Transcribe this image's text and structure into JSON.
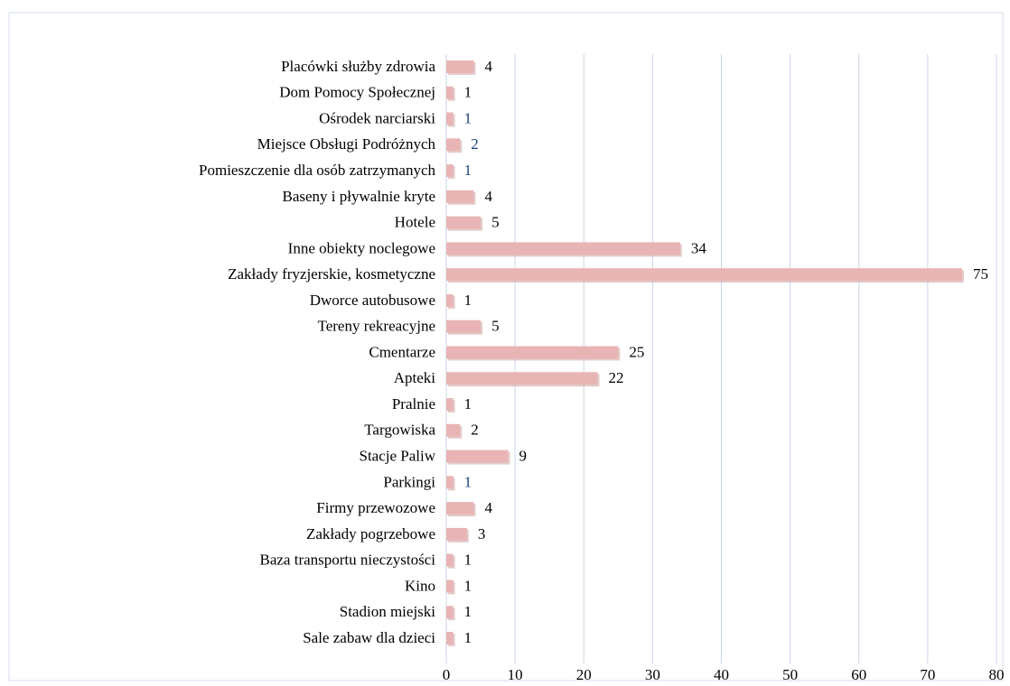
{
  "chart_data": {
    "type": "barh",
    "categories": [
      "Placówki służby zdrowia",
      "Dom Pomocy Społecznej",
      "Ośrodek narciarski",
      "Miejsce Obsługi Podróżnych",
      "Pomieszczenie dla osób zatrzymanych",
      "Baseny i pływalnie kryte",
      "Hotele",
      "Inne obiekty noclegowe",
      "Zakłady fryzjerskie, kosmetyczne",
      "Dworce autobusowe",
      "Tereny rekreacyjne",
      "Cmentarze",
      "Apteki",
      "Pralnie",
      "Targowiska",
      "Stacje Paliw",
      "Parkingi",
      "Firmy przewozowe",
      "Zakłady pogrzebowe",
      "Baza transportu nieczystości",
      "Kino",
      "Stadion miejski",
      "Sale zabaw dla dzieci"
    ],
    "values": [
      4,
      1,
      1,
      2,
      1,
      4,
      5,
      34,
      75,
      1,
      5,
      25,
      22,
      1,
      2,
      9,
      1,
      4,
      3,
      1,
      1,
      1,
      1
    ],
    "label_colors": [
      "#000000",
      "#000000",
      "#1f3f7a",
      "#1f3f7a",
      "#1f3f7a",
      "#000000",
      "#000000",
      "#000000",
      "#000000",
      "#000000",
      "#000000",
      "#000000",
      "#000000",
      "#000000",
      "#000000",
      "#000000",
      "#1f3f7a",
      "#000000",
      "#000000",
      "#000000",
      "#000000",
      "#000000",
      "#000000"
    ],
    "color": "#e8b4b4",
    "xlim": [
      0,
      80
    ],
    "xticks": [
      0,
      10,
      20,
      30,
      40,
      50,
      60,
      70,
      80
    ],
    "grid": true
  }
}
